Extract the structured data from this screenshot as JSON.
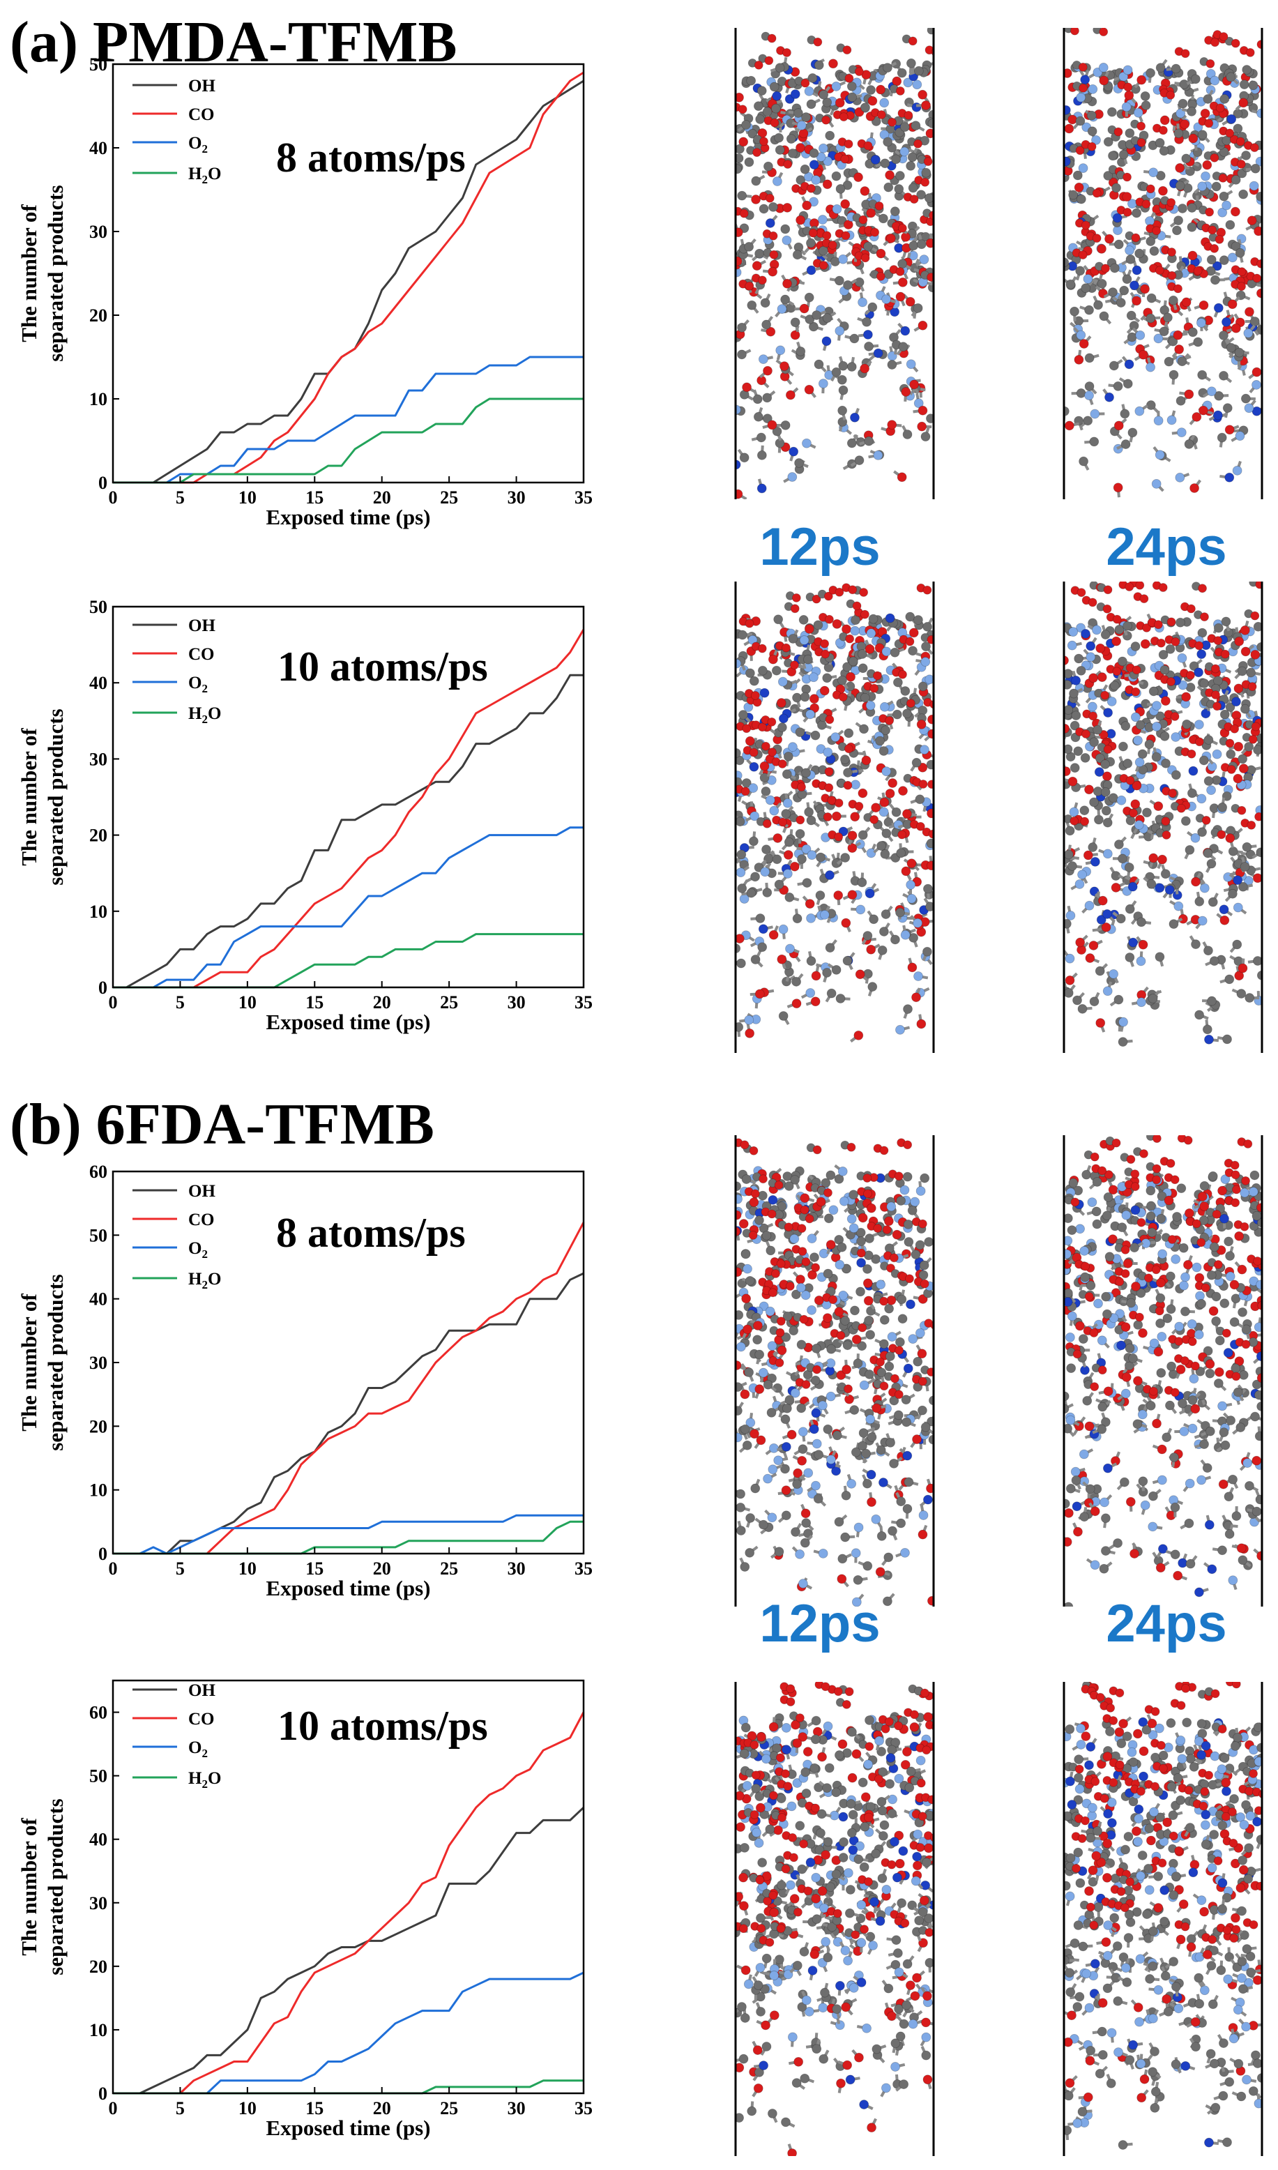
{
  "panels": [
    {
      "label": "(a) PMDA-TFMB",
      "time_labels": [
        "12ps",
        "24ps"
      ]
    },
    {
      "label": "(b) 6FDA-TFMB",
      "time_labels": [
        "12ps",
        "24ps"
      ]
    }
  ],
  "colors": {
    "OH": "#3d3d3d",
    "CO": "#ee2a2a",
    "O2": "#1f6fd8",
    "H2O": "#22a35a",
    "carbon": "#6e6e6e",
    "oxygen": "#d81b1b",
    "fluorine": "#7fa9e6",
    "nitrogen": "#1c3fc4"
  },
  "snapshot_description": "molecular dynamics snapshots",
  "chart_data": [
    {
      "type": "line",
      "title": "8 atoms/ps",
      "xlabel": "Exposed time (ps)",
      "ylabel": "The number of separated products",
      "xlim": [
        0,
        35
      ],
      "ylim": [
        0,
        50
      ],
      "xticks": [
        0,
        5,
        10,
        15,
        20,
        25,
        30,
        35
      ],
      "yticks": [
        0,
        10,
        20,
        30,
        40,
        50
      ],
      "series": [
        {
          "name": "OH",
          "sub": "",
          "color": "#3d3d3d",
          "x": [
            0,
            3,
            4,
            5,
            6,
            7,
            8,
            9,
            10,
            11,
            12,
            13,
            14,
            15,
            16,
            17,
            18,
            19,
            20,
            21,
            22,
            23,
            24,
            25,
            26,
            27,
            28,
            29,
            30,
            31,
            32,
            33,
            34,
            35
          ],
          "y": [
            0,
            0,
            1,
            2,
            3,
            4,
            6,
            6,
            7,
            7,
            8,
            8,
            10,
            13,
            13,
            15,
            16,
            19,
            23,
            25,
            28,
            29,
            30,
            32,
            34,
            38,
            39,
            40,
            41,
            43,
            45,
            46,
            47,
            48
          ]
        },
        {
          "name": "CO",
          "sub": "",
          "color": "#ee2a2a",
          "x": [
            0,
            6,
            7,
            8,
            9,
            10,
            11,
            12,
            13,
            14,
            15,
            16,
            17,
            18,
            19,
            20,
            21,
            22,
            23,
            24,
            25,
            26,
            27,
            28,
            29,
            30,
            31,
            32,
            33,
            34,
            35
          ],
          "y": [
            0,
            0,
            1,
            1,
            1,
            2,
            3,
            5,
            6,
            8,
            10,
            13,
            15,
            16,
            18,
            19,
            21,
            23,
            25,
            27,
            29,
            31,
            34,
            37,
            38,
            39,
            40,
            44,
            46,
            48,
            49
          ]
        },
        {
          "name": "O",
          "sub": "2",
          "color": "#1f6fd8",
          "x": [
            0,
            4,
            5,
            6,
            7,
            8,
            9,
            10,
            11,
            12,
            13,
            14,
            15,
            16,
            17,
            18,
            19,
            20,
            21,
            22,
            23,
            24,
            25,
            26,
            27,
            28,
            29,
            30,
            31,
            32,
            33,
            34,
            35
          ],
          "y": [
            0,
            0,
            1,
            1,
            1,
            2,
            2,
            4,
            4,
            4,
            5,
            5,
            5,
            6,
            7,
            8,
            8,
            8,
            8,
            11,
            11,
            13,
            13,
            13,
            13,
            14,
            14,
            14,
            15,
            15,
            15,
            15,
            15
          ]
        },
        {
          "name": "H",
          "sub": "2",
          "suffix": "O",
          "color": "#22a35a",
          "x": [
            0,
            5,
            6,
            8,
            10,
            12,
            14,
            15,
            16,
            17,
            18,
            19,
            20,
            21,
            22,
            23,
            24,
            25,
            26,
            27,
            28,
            29,
            30,
            31,
            32,
            33,
            34,
            35
          ],
          "y": [
            0,
            0,
            1,
            1,
            1,
            1,
            1,
            1,
            2,
            2,
            4,
            5,
            6,
            6,
            6,
            6,
            7,
            7,
            7,
            9,
            10,
            10,
            10,
            10,
            10,
            10,
            10,
            10
          ]
        }
      ]
    },
    {
      "type": "line",
      "title": "10 atoms/ps",
      "xlabel": "Exposed time (ps)",
      "ylabel": "The number of separated products",
      "xlim": [
        0,
        35
      ],
      "ylim": [
        0,
        50
      ],
      "xticks": [
        0,
        5,
        10,
        15,
        20,
        25,
        30,
        35
      ],
      "yticks": [
        0,
        10,
        20,
        30,
        40,
        50
      ],
      "series": [
        {
          "name": "OH",
          "sub": "",
          "color": "#3d3d3d",
          "x": [
            0,
            1,
            2,
            3,
            4,
            5,
            6,
            7,
            8,
            9,
            10,
            11,
            12,
            13,
            14,
            15,
            16,
            17,
            18,
            19,
            20,
            21,
            22,
            23,
            24,
            25,
            26,
            27,
            28,
            29,
            30,
            31,
            32,
            33,
            34,
            35
          ],
          "y": [
            0,
            0,
            1,
            2,
            3,
            5,
            5,
            7,
            8,
            8,
            9,
            11,
            11,
            13,
            14,
            18,
            18,
            22,
            22,
            23,
            24,
            24,
            25,
            26,
            27,
            27,
            29,
            32,
            32,
            33,
            34,
            36,
            36,
            38,
            41,
            41
          ]
        },
        {
          "name": "CO",
          "sub": "",
          "color": "#ee2a2a",
          "x": [
            0,
            6,
            7,
            8,
            9,
            10,
            11,
            12,
            13,
            14,
            15,
            16,
            17,
            18,
            19,
            20,
            21,
            22,
            23,
            24,
            25,
            26,
            27,
            28,
            29,
            30,
            31,
            32,
            33,
            34,
            35
          ],
          "y": [
            0,
            0,
            1,
            2,
            2,
            2,
            4,
            5,
            7,
            9,
            11,
            12,
            13,
            15,
            17,
            18,
            20,
            23,
            25,
            28,
            30,
            33,
            36,
            37,
            38,
            39,
            40,
            41,
            42,
            44,
            47
          ]
        },
        {
          "name": "O",
          "sub": "2",
          "color": "#1f6fd8",
          "x": [
            0,
            3,
            4,
            5,
            6,
            7,
            8,
            9,
            10,
            11,
            12,
            13,
            14,
            15,
            16,
            17,
            18,
            19,
            20,
            21,
            22,
            23,
            24,
            25,
            26,
            27,
            28,
            29,
            30,
            31,
            32,
            33,
            34,
            35
          ],
          "y": [
            0,
            0,
            1,
            1,
            1,
            3,
            3,
            6,
            7,
            8,
            8,
            8,
            8,
            8,
            8,
            8,
            10,
            12,
            12,
            13,
            14,
            15,
            15,
            17,
            18,
            19,
            20,
            20,
            20,
            20,
            20,
            20,
            21,
            21
          ]
        },
        {
          "name": "H",
          "sub": "2",
          "suffix": "O",
          "color": "#22a35a",
          "x": [
            0,
            12,
            13,
            14,
            15,
            16,
            17,
            18,
            19,
            20,
            21,
            22,
            23,
            24,
            25,
            26,
            27,
            28,
            29,
            30,
            31,
            32,
            33,
            34,
            35
          ],
          "y": [
            0,
            0,
            1,
            2,
            3,
            3,
            3,
            3,
            4,
            4,
            5,
            5,
            5,
            6,
            6,
            6,
            7,
            7,
            7,
            7,
            7,
            7,
            7,
            7,
            7
          ]
        }
      ]
    },
    {
      "type": "line",
      "title": "8 atoms/ps",
      "xlabel": "Exposed time (ps)",
      "ylabel": "The number of separated products",
      "xlim": [
        0,
        35
      ],
      "ylim": [
        0,
        60
      ],
      "xticks": [
        0,
        5,
        10,
        15,
        20,
        25,
        30,
        35
      ],
      "yticks": [
        0,
        10,
        20,
        30,
        40,
        50,
        60
      ],
      "series": [
        {
          "name": "OH",
          "sub": "",
          "color": "#3d3d3d",
          "x": [
            0,
            4,
            5,
            6,
            7,
            8,
            9,
            10,
            11,
            12,
            13,
            14,
            15,
            16,
            17,
            18,
            19,
            20,
            21,
            22,
            23,
            24,
            25,
            26,
            27,
            28,
            29,
            30,
            31,
            32,
            33,
            34,
            35
          ],
          "y": [
            0,
            0,
            2,
            2,
            3,
            4,
            5,
            7,
            8,
            12,
            13,
            15,
            16,
            19,
            20,
            22,
            26,
            26,
            27,
            29,
            31,
            32,
            35,
            35,
            35,
            36,
            36,
            36,
            40,
            40,
            40,
            43,
            44
          ]
        },
        {
          "name": "CO",
          "sub": "",
          "color": "#ee2a2a",
          "x": [
            0,
            7,
            8,
            9,
            10,
            11,
            12,
            13,
            14,
            15,
            16,
            17,
            18,
            19,
            20,
            21,
            22,
            23,
            24,
            25,
            26,
            27,
            28,
            29,
            30,
            31,
            32,
            33,
            34,
            35
          ],
          "y": [
            0,
            0,
            2,
            4,
            5,
            6,
            7,
            10,
            14,
            16,
            18,
            19,
            20,
            22,
            22,
            23,
            24,
            27,
            30,
            32,
            34,
            35,
            37,
            38,
            40,
            41,
            43,
            44,
            48,
            52
          ]
        },
        {
          "name": "O",
          "sub": "2",
          "color": "#1f6fd8",
          "x": [
            0,
            2,
            3,
            4,
            5,
            6,
            7,
            8,
            9,
            10,
            12,
            14,
            16,
            18,
            19,
            20,
            22,
            24,
            26,
            28,
            29,
            30,
            31,
            32,
            33,
            34,
            35
          ],
          "y": [
            0,
            0,
            1,
            0,
            1,
            2,
            3,
            4,
            4,
            4,
            4,
            4,
            4,
            4,
            4,
            5,
            5,
            5,
            5,
            5,
            5,
            6,
            6,
            6,
            6,
            6,
            6
          ]
        },
        {
          "name": "H",
          "sub": "2",
          "suffix": "O",
          "color": "#22a35a",
          "x": [
            0,
            14,
            15,
            16,
            17,
            18,
            19,
            20,
            21,
            22,
            23,
            24,
            25,
            26,
            27,
            28,
            29,
            30,
            31,
            32,
            33,
            34,
            35
          ],
          "y": [
            0,
            0,
            1,
            1,
            1,
            1,
            1,
            1,
            1,
            2,
            2,
            2,
            2,
            2,
            2,
            2,
            2,
            2,
            2,
            2,
            4,
            5,
            5
          ]
        }
      ]
    },
    {
      "type": "line",
      "title": "10 atoms/ps",
      "xlabel": "Exposed time (ps)",
      "ylabel": "The number of separated products",
      "xlim": [
        0,
        35
      ],
      "ylim": [
        0,
        65
      ],
      "xticks": [
        0,
        5,
        10,
        15,
        20,
        25,
        30,
        35
      ],
      "yticks": [
        0,
        10,
        20,
        30,
        40,
        50,
        60
      ],
      "series": [
        {
          "name": "OH",
          "sub": "",
          "color": "#3d3d3d",
          "x": [
            0,
            2,
            3,
            4,
            5,
            6,
            7,
            8,
            9,
            10,
            11,
            12,
            13,
            14,
            15,
            16,
            17,
            18,
            19,
            20,
            21,
            22,
            23,
            24,
            25,
            26,
            27,
            28,
            29,
            30,
            31,
            32,
            33,
            34,
            35
          ],
          "y": [
            0,
            0,
            1,
            2,
            3,
            4,
            6,
            6,
            8,
            10,
            15,
            16,
            18,
            19,
            20,
            22,
            23,
            23,
            24,
            24,
            25,
            26,
            27,
            28,
            33,
            33,
            33,
            35,
            38,
            41,
            41,
            43,
            43,
            43,
            45
          ]
        },
        {
          "name": "CO",
          "sub": "",
          "color": "#ee2a2a",
          "x": [
            0,
            5,
            6,
            7,
            8,
            9,
            10,
            11,
            12,
            13,
            14,
            15,
            16,
            17,
            18,
            19,
            20,
            21,
            22,
            23,
            24,
            25,
            26,
            27,
            28,
            29,
            30,
            31,
            32,
            33,
            34,
            35
          ],
          "y": [
            0,
            0,
            2,
            3,
            4,
            5,
            5,
            8,
            11,
            12,
            16,
            19,
            20,
            21,
            22,
            24,
            26,
            28,
            30,
            33,
            34,
            39,
            42,
            45,
            47,
            48,
            50,
            51,
            54,
            55,
            56,
            60
          ]
        },
        {
          "name": "O",
          "sub": "2",
          "color": "#1f6fd8",
          "x": [
            0,
            7,
            8,
            9,
            10,
            11,
            12,
            13,
            14,
            15,
            16,
            17,
            18,
            19,
            20,
            21,
            22,
            23,
            24,
            25,
            26,
            27,
            28,
            29,
            30,
            31,
            32,
            33,
            34,
            35
          ],
          "y": [
            0,
            0,
            2,
            2,
            2,
            2,
            2,
            2,
            2,
            3,
            5,
            5,
            6,
            7,
            9,
            11,
            12,
            13,
            13,
            13,
            16,
            17,
            18,
            18,
            18,
            18,
            18,
            18,
            18,
            19
          ]
        },
        {
          "name": "H",
          "sub": "2",
          "suffix": "O",
          "color": "#22a35a",
          "x": [
            0,
            23,
            24,
            25,
            26,
            27,
            28,
            29,
            30,
            31,
            32,
            33,
            34,
            35
          ],
          "y": [
            0,
            0,
            1,
            1,
            1,
            1,
            1,
            1,
            1,
            1,
            2,
            2,
            2,
            2
          ]
        }
      ]
    }
  ]
}
